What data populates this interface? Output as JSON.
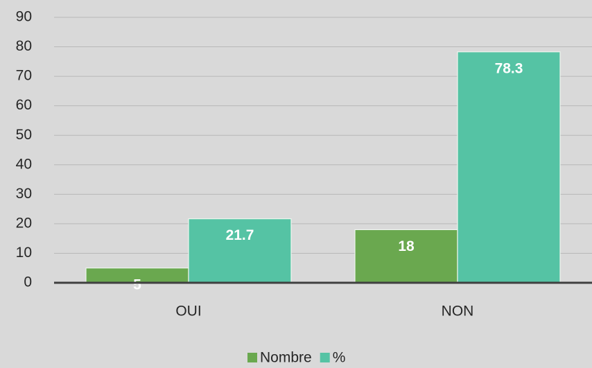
{
  "chart_data": {
    "type": "bar",
    "categories": [
      "OUI",
      "NON"
    ],
    "series": [
      {
        "name": "Nombre",
        "color": "#6aa84f",
        "values": [
          5,
          18
        ]
      },
      {
        "name": "%",
        "color": "#55c3a4",
        "values": [
          21.7,
          78.3
        ]
      }
    ],
    "ylim": [
      0,
      90
    ],
    "yticks": [
      0,
      10,
      20,
      30,
      40,
      50,
      60,
      70,
      80,
      90
    ],
    "grid": true,
    "legend": "bottom"
  }
}
